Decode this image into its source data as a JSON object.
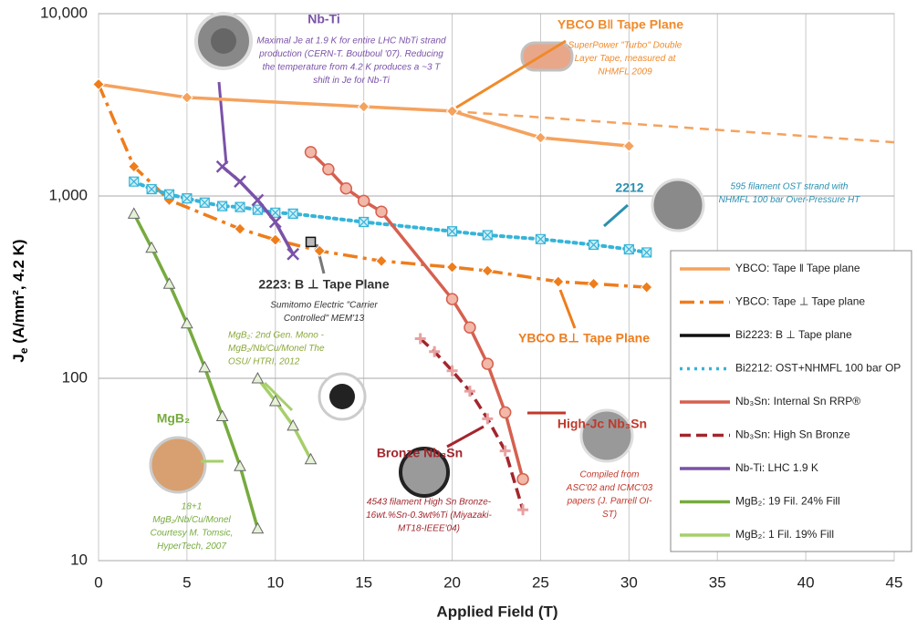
{
  "chart_data": {
    "type": "line",
    "x_label": "Applied Field (T)",
    "y_label_main": "J",
    "y_label_sub": "e",
    "y_label_rest": " (A/mm², 4.2 K)",
    "log_y": true,
    "grid": true,
    "legend": "right",
    "xlim": [
      0,
      45
    ],
    "xticks": [
      0,
      5,
      10,
      15,
      20,
      25,
      30,
      35,
      40,
      45
    ],
    "ylim": [
      10,
      10000
    ],
    "yticks": [
      {
        "value": 10,
        "label": "10"
      },
      {
        "value": 100,
        "label": "100"
      },
      {
        "value": 1000,
        "label": "1,000"
      },
      {
        "value": 10000,
        "label": "10,000"
      }
    ],
    "series": [
      {
        "name": "YBCO: Tape ǁ Tape plane",
        "color": "#f5a25e",
        "dash": "solid",
        "marker": "diamond",
        "x": [
          0,
          5,
          15,
          20,
          25,
          30
        ],
        "values": [
          4100,
          3470,
          3090,
          2920,
          2090,
          1880
        ],
        "extrapolation_x": [
          20,
          45
        ],
        "extrapolation_values": [
          2920,
          1970
        ]
      },
      {
        "name": "YBCO: Tape ⊥ Tape plane",
        "color": "#ee7d1c",
        "dash": "dashdot",
        "marker": "diamond",
        "x": [
          0,
          2,
          4,
          8,
          10,
          12.5,
          16,
          20,
          22,
          26,
          28,
          31
        ],
        "values": [
          4100,
          1450,
          950,
          660,
          575,
          500,
          440,
          407,
          389,
          339,
          330,
          316
        ]
      },
      {
        "name": "Bi2223: B ⊥ Tape plane",
        "color": "#111111",
        "dash": "solid",
        "marker": "square",
        "x": [
          12
        ],
        "values": [
          560
        ]
      },
      {
        "name": "Bi2212: OST+NHMFL 100 bar OP",
        "color": "#35b4d8",
        "dash": "dotted",
        "marker": "xbox",
        "x": [
          2,
          3,
          4,
          5,
          6,
          7,
          8,
          9,
          10,
          11,
          15,
          20,
          22,
          25,
          28,
          30,
          31
        ],
        "values": [
          1200,
          1090,
          1020,
          970,
          920,
          880,
          870,
          840,
          810,
          800,
          720,
          640,
          610,
          580,
          540,
          510,
          490
        ]
      },
      {
        "name": "Nb₃Sn: Internal Sn RRP®",
        "color": "#d6604f",
        "dash": "solid",
        "marker": "circle",
        "x": [
          12,
          13,
          14,
          15,
          16,
          20,
          21,
          22,
          23,
          24
        ],
        "values": [
          1740,
          1400,
          1100,
          940,
          820,
          272,
          190,
          120,
          65,
          28
        ]
      },
      {
        "name": "Nb₃Sn: High Sn Bronze",
        "color": "#a3262d",
        "dash": "dashed",
        "marker": "plus",
        "x": [
          18.2,
          19,
          20,
          21,
          22,
          23,
          24
        ],
        "values": [
          165,
          140,
          110,
          85,
          60,
          40,
          19
        ]
      },
      {
        "name": "Nb-Ti: LHC 1.9 K",
        "color": "#7a52a8",
        "dash": "solid",
        "marker": "x",
        "x": [
          7,
          8,
          9,
          10,
          11
        ],
        "values": [
          1450,
          1200,
          950,
          720,
          480
        ]
      },
      {
        "name": "MgB₂: 19 Fil. 24% Fill",
        "color": "#76ab3e",
        "dash": "solid",
        "marker": "triangle",
        "x": [
          2,
          3,
          4,
          5,
          6,
          7,
          8,
          9
        ],
        "values": [
          800,
          520,
          330,
          200,
          115,
          62,
          33,
          15
        ]
      },
      {
        "name": "MgB₂: 1 Fil. 19% Fill",
        "color": "#a6cf6a",
        "dash": "solid",
        "marker": "triangle",
        "x": [
          9,
          10,
          11,
          12
        ],
        "values": [
          100,
          75,
          55,
          36
        ]
      }
    ],
    "annotations": [
      {
        "title": "Nb-Ti",
        "color": "#7a52a8",
        "lines": [
          "Maximal Je at 1.9 K for entire LHC NbTi strand",
          "production (CERN-T. Boutboul '07). Reducing",
          "the temperature from 4.2 K produces a ~3 T",
          "shift in Je for Nb-Ti"
        ]
      },
      {
        "title": "YBCO B‖ Tape Plane",
        "color": "#f08a2a",
        "lines": [
          "SuperPower \"Turbo\" Double",
          "Layer Tape, measured at",
          "NHMFL 2009"
        ]
      },
      {
        "title": "2212",
        "color": "#2a8fb0",
        "lines": [
          "595 filament OST strand with",
          "NHMFL 100 bar Over-Pressure HT"
        ]
      },
      {
        "title": "2223: B ⊥ Tape Plane",
        "color": "#333333",
        "lines": [
          "Sumitomo Electric \"Carrier",
          "Controlled\" MEM'13"
        ]
      },
      {
        "title": "YBCO B⊥ Tape Plane",
        "color": "#ee7d1c",
        "lines": []
      },
      {
        "title": "",
        "color": "#8aa83a",
        "lines": [
          "MgB₂: 2nd Gen. Mono -",
          "MgB₂/Nb/Cu/Monel  The",
          "OSU/ HTRI, 2012"
        ]
      },
      {
        "title": "MgB₂",
        "color": "#76ab3e",
        "lines": [
          "18+1",
          "MgB₂/Nb/Cu/Monel",
          "Courtesy M. Tomsic,",
          "HyperTech, 2007"
        ]
      },
      {
        "title": "Bronze Nb₃Sn",
        "color": "#a3262d",
        "lines": [
          "4543 filament High Sn Bronze-",
          "16wt.%Sn-0.3wt%Ti (Miyazaki-",
          "MT18-IEEE'04)"
        ]
      },
      {
        "title": "High-Jc Nb₃Sn",
        "color": "#c0392b",
        "lines": [
          "Compiled from",
          "ASC'02 and ICMC'03",
          "papers (J. Parrell OI-",
          "ST)"
        ]
      }
    ]
  }
}
